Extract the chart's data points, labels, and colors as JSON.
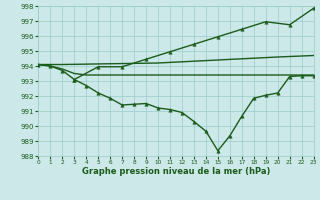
{
  "line_flat1": {
    "x": [
      0,
      1,
      2,
      10,
      20,
      23
    ],
    "y": [
      994.1,
      994.1,
      994.1,
      994.2,
      994.6,
      994.7
    ]
  },
  "line_flat2": {
    "x": [
      0,
      1,
      2,
      3,
      4,
      23
    ],
    "y": [
      994.1,
      994.0,
      993.8,
      993.5,
      993.4,
      993.4
    ]
  },
  "line_V": {
    "x": [
      0,
      1,
      2,
      3,
      4,
      5,
      6,
      7,
      8,
      9,
      10,
      11,
      12,
      13,
      14,
      15,
      16,
      17,
      18,
      19,
      20,
      21,
      22,
      23
    ],
    "y": [
      994.1,
      994.0,
      993.7,
      993.1,
      992.7,
      992.2,
      991.85,
      991.4,
      991.45,
      991.5,
      991.2,
      991.1,
      990.9,
      990.3,
      989.65,
      988.35,
      989.35,
      990.65,
      991.85,
      992.05,
      992.2,
      993.3,
      993.35,
      993.35
    ]
  },
  "line_rise": {
    "x": [
      3,
      5,
      7,
      9,
      11,
      13,
      15,
      17,
      19,
      21,
      23
    ],
    "y": [
      993.1,
      993.95,
      993.95,
      994.45,
      994.95,
      995.45,
      995.95,
      996.45,
      996.95,
      996.75,
      997.85
    ]
  },
  "xlim": [
    0,
    23
  ],
  "ylim": [
    988,
    998
  ],
  "yticks": [
    988,
    989,
    990,
    991,
    992,
    993,
    994,
    995,
    996,
    997,
    998
  ],
  "xticks": [
    0,
    1,
    2,
    3,
    4,
    5,
    6,
    7,
    8,
    9,
    10,
    11,
    12,
    13,
    14,
    15,
    16,
    17,
    18,
    19,
    20,
    21,
    22,
    23
  ],
  "xlabel": "Graphe pression niveau de la mer (hPa)",
  "background_color": "#cce8e8",
  "grid_color": "#99cccc",
  "line_color": "#1a5c1a",
  "tick_color": "#1a5c1a",
  "label_color": "#1a5c1a"
}
